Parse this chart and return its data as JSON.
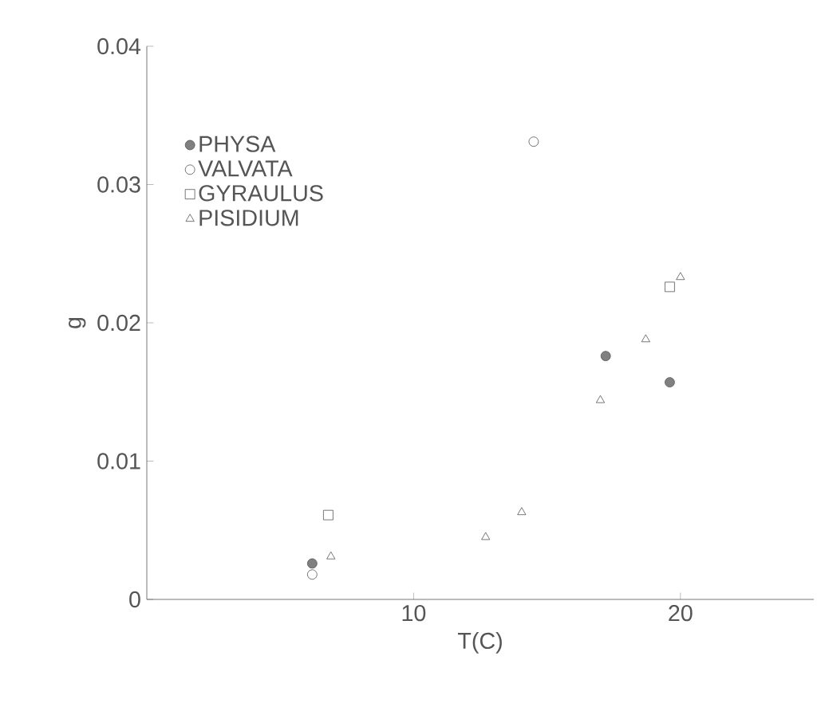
{
  "chart_data": {
    "type": "scatter",
    "xlabel": "T(C)",
    "ylabel": "g",
    "xlim": [
      0,
      25
    ],
    "ylim": [
      0,
      0.04
    ],
    "xticks": [
      10,
      20
    ],
    "yticks": [
      0,
      0.01,
      0.02,
      0.03,
      0.04
    ],
    "legend": "top left",
    "series": [
      {
        "name": "PHYSA",
        "color": "#808080",
        "marker": "circle",
        "x": [
          6.2,
          17.2,
          19.6
        ],
        "values": [
          0.0026,
          0.0176,
          0.0157
        ]
      },
      {
        "name": "VALVATA",
        "color": "#ffffff",
        "marker": "circle",
        "x": [
          6.2,
          14.5
        ],
        "values": [
          0.0018,
          0.0331
        ]
      },
      {
        "name": "GYRAULUS",
        "color": "#ffffff",
        "marker": "square",
        "x": [
          6.8,
          19.6
        ],
        "values": [
          0.0061,
          0.0226
        ]
      },
      {
        "name": "PISIDIUM",
        "color": "#ffffff",
        "marker": "triangle",
        "x": [
          6.9,
          12.7,
          14.05,
          17.0,
          18.7,
          20.0
        ],
        "values": [
          0.0031,
          0.0045,
          0.0063,
          0.0144,
          0.0188,
          0.0233
        ]
      }
    ]
  }
}
